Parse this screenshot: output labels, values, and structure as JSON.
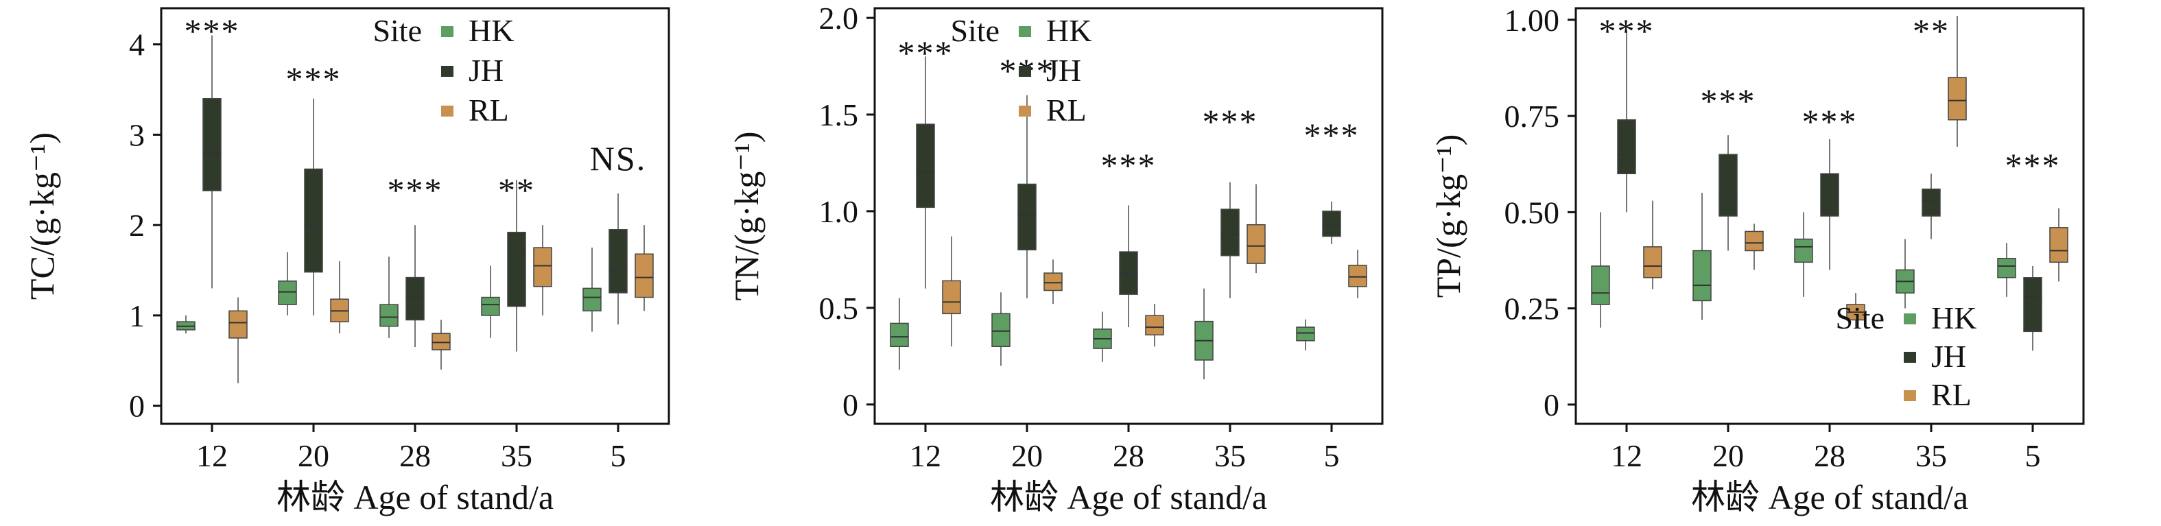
{
  "colors": {
    "HK": "#5e9e63",
    "JH": "#2f3a2b",
    "RL": "#c89150",
    "axis": "#111111",
    "whisker": "#777777"
  },
  "chart_data": [
    {
      "type": "box",
      "ylabel": "TC/(g·kg⁻¹)",
      "xlabel": "林龄 Age of stand/a",
      "ylim": [
        -0.2,
        4.4
      ],
      "yticks": [
        "0",
        "1",
        "2",
        "3",
        "4"
      ],
      "categories": [
        "12",
        "20",
        "28",
        "35",
        "5"
      ],
      "legend": {
        "title": "Site",
        "entries": [
          "HK",
          "JH",
          "RL"
        ],
        "placement": "top-right"
      },
      "significance": [
        "***",
        "***",
        "***",
        "**",
        "NS."
      ],
      "series": [
        {
          "name": "HK",
          "boxes": [
            [
              0.8,
              0.84,
              0.88,
              0.93,
              1.0
            ],
            [
              1.0,
              1.12,
              1.26,
              1.38,
              1.7
            ],
            [
              0.75,
              0.88,
              0.98,
              1.12,
              1.65
            ],
            [
              0.75,
              1.0,
              1.12,
              1.2,
              1.55
            ],
            [
              0.82,
              1.05,
              1.2,
              1.3,
              1.75
            ]
          ]
        },
        {
          "name": "JH",
          "boxes": [
            [
              1.3,
              2.38,
              2.8,
              3.4,
              4.1
            ],
            [
              1.0,
              1.48,
              2.0,
              2.62,
              3.4
            ],
            [
              0.65,
              0.95,
              1.2,
              1.42,
              2.0
            ],
            [
              0.6,
              1.1,
              1.7,
              1.92,
              2.5
            ],
            [
              0.9,
              1.25,
              1.5,
              1.95,
              2.35
            ]
          ]
        },
        {
          "name": "RL",
          "boxes": [
            [
              0.25,
              0.75,
              0.92,
              1.05,
              1.2
            ],
            [
              0.8,
              0.93,
              1.05,
              1.18,
              1.6
            ],
            [
              0.4,
              0.62,
              0.7,
              0.8,
              0.95
            ],
            [
              1.0,
              1.32,
              1.55,
              1.75,
              2.0
            ],
            [
              1.05,
              1.2,
              1.42,
              1.68,
              2.0
            ]
          ]
        }
      ]
    },
    {
      "type": "box",
      "ylabel": "TN/(g·kg⁻¹)",
      "xlabel": "林龄 Age of stand/a",
      "ylim": [
        -0.1,
        2.05
      ],
      "yticks": [
        "0",
        "0.5",
        "1.0",
        "1.5",
        "2.0"
      ],
      "categories": [
        "12",
        "20",
        "28",
        "35",
        "5"
      ],
      "legend": {
        "title": "Site",
        "entries": [
          "HK",
          "JH",
          "RL"
        ],
        "placement": "top-right"
      },
      "significance": [
        "***",
        "***",
        "***",
        "***",
        "***"
      ],
      "series": [
        {
          "name": "HK",
          "boxes": [
            [
              0.18,
              0.3,
              0.35,
              0.42,
              0.55
            ],
            [
              0.2,
              0.3,
              0.38,
              0.47,
              0.58
            ],
            [
              0.22,
              0.29,
              0.34,
              0.39,
              0.48
            ],
            [
              0.13,
              0.23,
              0.33,
              0.43,
              0.6
            ],
            [
              0.28,
              0.33,
              0.37,
              0.4,
              0.44
            ]
          ]
        },
        {
          "name": "JH",
          "boxes": [
            [
              0.6,
              1.02,
              1.2,
              1.45,
              1.8
            ],
            [
              0.55,
              0.8,
              0.98,
              1.14,
              1.6
            ],
            [
              0.4,
              0.57,
              0.68,
              0.79,
              1.03
            ],
            [
              0.55,
              0.77,
              0.88,
              1.01,
              1.15
            ],
            [
              0.83,
              0.87,
              0.93,
              1.0,
              1.05
            ]
          ]
        },
        {
          "name": "RL",
          "boxes": [
            [
              0.3,
              0.47,
              0.53,
              0.64,
              0.87
            ],
            [
              0.52,
              0.59,
              0.63,
              0.68,
              0.75
            ],
            [
              0.3,
              0.36,
              0.4,
              0.46,
              0.52
            ],
            [
              0.68,
              0.73,
              0.82,
              0.93,
              1.14
            ],
            [
              0.55,
              0.61,
              0.66,
              0.72,
              0.8
            ]
          ]
        }
      ]
    },
    {
      "type": "box",
      "ylabel": "TP/(g·kg⁻¹)",
      "xlabel": "林龄 Age of stand/a",
      "ylim": [
        -0.05,
        1.03
      ],
      "yticks": [
        "0",
        "0.25",
        "0.50",
        "0.75",
        "1.00"
      ],
      "categories": [
        "12",
        "20",
        "28",
        "35",
        "5"
      ],
      "legend": {
        "title": "Site",
        "entries": [
          "HK",
          "JH",
          "RL"
        ],
        "placement": "bottom-right"
      },
      "significance": [
        "***",
        "***",
        "***",
        "**",
        "***"
      ],
      "series": [
        {
          "name": "HK",
          "boxes": [
            [
              0.2,
              0.26,
              0.29,
              0.36,
              0.5
            ],
            [
              0.22,
              0.27,
              0.31,
              0.4,
              0.55
            ],
            [
              0.28,
              0.37,
              0.41,
              0.43,
              0.5
            ],
            [
              0.25,
              0.29,
              0.32,
              0.35,
              0.43
            ],
            [
              0.28,
              0.33,
              0.36,
              0.38,
              0.42
            ]
          ]
        },
        {
          "name": "JH",
          "boxes": [
            [
              0.5,
              0.6,
              0.65,
              0.74,
              0.97
            ],
            [
              0.4,
              0.49,
              0.54,
              0.65,
              0.7
            ],
            [
              0.35,
              0.49,
              0.52,
              0.6,
              0.69
            ],
            [
              0.43,
              0.49,
              0.53,
              0.56,
              0.6
            ],
            [
              0.14,
              0.19,
              0.28,
              0.33,
              0.36
            ]
          ]
        },
        {
          "name": "RL",
          "boxes": [
            [
              0.3,
              0.33,
              0.36,
              0.41,
              0.53
            ],
            [
              0.35,
              0.4,
              0.42,
              0.45,
              0.47
            ],
            [
              0.2,
              0.22,
              0.24,
              0.26,
              0.29
            ],
            [
              0.67,
              0.74,
              0.79,
              0.85,
              1.01
            ],
            [
              0.32,
              0.37,
              0.4,
              0.46,
              0.51
            ]
          ]
        }
      ]
    }
  ]
}
